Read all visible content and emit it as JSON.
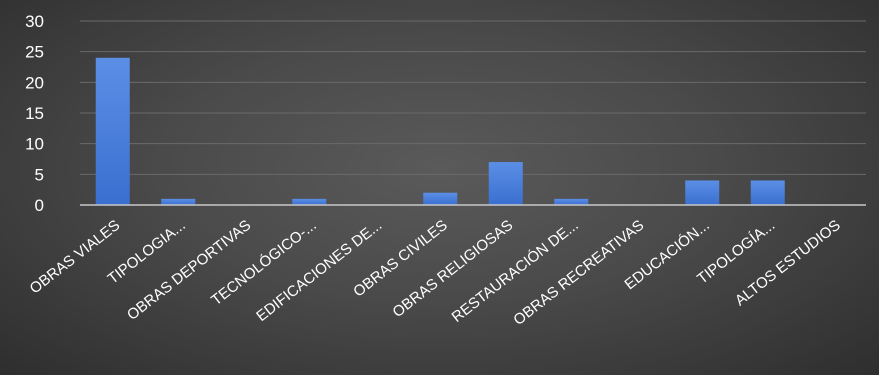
{
  "chart_data": {
    "type": "bar",
    "title": "",
    "xlabel": "",
    "ylabel": "",
    "categories": [
      "OBRAS VIALES",
      "TIPOLOGIA...",
      "OBRAS DEPORTIVAS",
      "TECNOLÓGICO-...",
      "EDIFICACIONES DE...",
      "OBRAS CIVILES",
      "OBRAS RELIGIOSAS",
      "RESTAURACIÓN DE...",
      "OBRAS RECREATIVAS",
      "EDUCACIÓN...",
      "TIPOLOGÍA...",
      "ALTOS ESTUDIOS"
    ],
    "values": [
      24,
      1,
      0,
      1,
      0,
      2,
      7,
      1,
      0,
      4,
      4,
      0
    ],
    "ylim": [
      0,
      30
    ],
    "yticks": [
      0,
      5,
      10,
      15,
      20,
      25,
      30
    ],
    "grid": true,
    "legend": "none",
    "colors": {
      "bar_top": "#5b8fe6",
      "bar_bottom": "#3a6fd0",
      "background": "#4a4a4a"
    }
  }
}
